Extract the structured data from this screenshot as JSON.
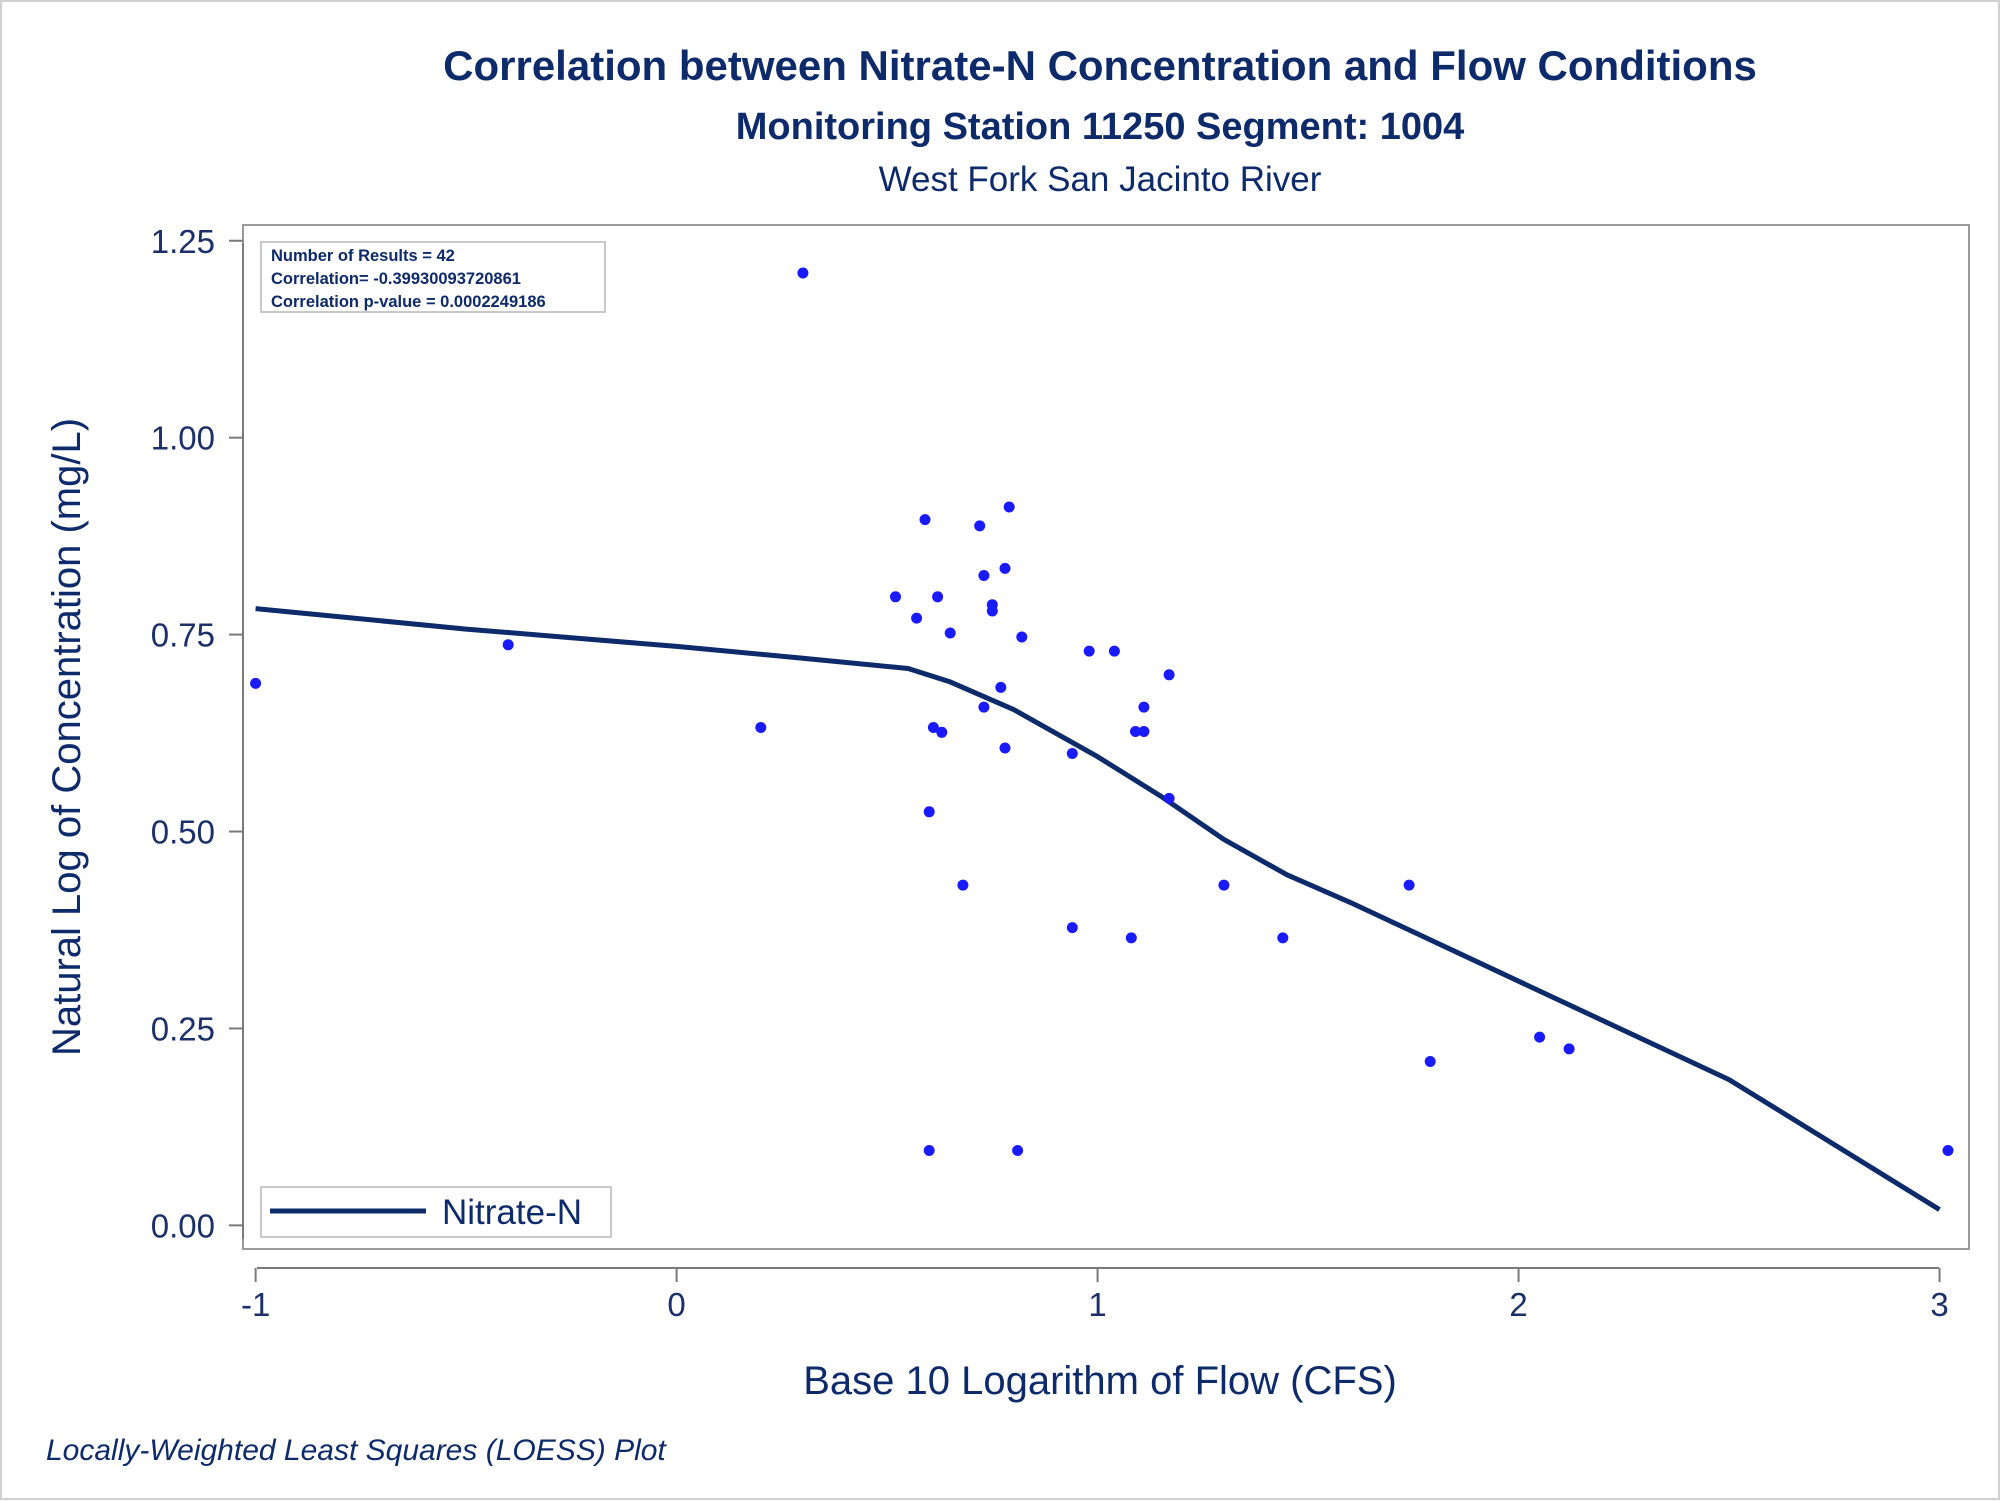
{
  "chart_data": {
    "type": "scatter",
    "title": "Correlation between Nitrate-N Concentration and Flow Conditions",
    "subtitle": "Monitoring Station 11250 Segment: 1004",
    "subtitle2": "West Fork San Jacinto River",
    "xlabel": "Base 10 Logarithm of Flow (CFS)",
    "ylabel": "Natural Log of Concentration (mg/L)",
    "footnote": "Locally-Weighted Least Squares (LOESS) Plot",
    "xlim": [
      -1.03,
      3.07
    ],
    "ylim": [
      -0.03,
      1.27
    ],
    "x_ticks": [
      -1,
      0,
      1,
      2,
      3
    ],
    "x_tick_labels": [
      "-1",
      "0",
      "1",
      "2",
      "3"
    ],
    "y_ticks": [
      0,
      0.25,
      0.5,
      0.75,
      1.0,
      1.25
    ],
    "y_tick_labels": [
      "0.00",
      "0.25",
      "0.50",
      "0.75",
      "1.00",
      "1.25"
    ],
    "grid": false,
    "stats": [
      "Number of Results = 42",
      "Correlation= -0.39930093720861",
      "Correlation p-value = 0.0002249186"
    ],
    "legend": {
      "position": "bottom-left",
      "entries": [
        "Nitrate-N"
      ]
    },
    "points_color": "#1a1aff",
    "line_color": "#0d2a6b",
    "points": [
      [
        -1.0,
        0.688
      ],
      [
        -0.4,
        0.737
      ],
      [
        0.2,
        0.632
      ],
      [
        0.3,
        1.209
      ],
      [
        0.52,
        0.798
      ],
      [
        0.57,
        0.771
      ],
      [
        0.59,
        0.896
      ],
      [
        0.6,
        0.525
      ],
      [
        0.6,
        0.095
      ],
      [
        0.61,
        0.632
      ],
      [
        0.62,
        0.798
      ],
      [
        0.63,
        0.626
      ],
      [
        0.65,
        0.752
      ],
      [
        0.68,
        0.432
      ],
      [
        0.72,
        0.888
      ],
      [
        0.73,
        0.825
      ],
      [
        0.73,
        0.658
      ],
      [
        0.75,
        0.788
      ],
      [
        0.75,
        0.78
      ],
      [
        0.77,
        0.683
      ],
      [
        0.78,
        0.834
      ],
      [
        0.78,
        0.606
      ],
      [
        0.79,
        0.912
      ],
      [
        0.81,
        0.095
      ],
      [
        0.82,
        0.747
      ],
      [
        0.94,
        0.599
      ],
      [
        0.94,
        0.378
      ],
      [
        0.98,
        0.729
      ],
      [
        1.04,
        0.729
      ],
      [
        1.08,
        0.365
      ],
      [
        1.09,
        0.627
      ],
      [
        1.11,
        0.658
      ],
      [
        1.11,
        0.627
      ],
      [
        1.17,
        0.699
      ],
      [
        1.17,
        0.542
      ],
      [
        1.3,
        0.432
      ],
      [
        1.44,
        0.365
      ],
      [
        1.74,
        0.432
      ],
      [
        1.79,
        0.208
      ],
      [
        2.05,
        0.239
      ],
      [
        2.12,
        0.224
      ],
      [
        3.02,
        0.095
      ]
    ],
    "series": [
      {
        "name": "Nitrate-N",
        "type": "line",
        "points": [
          [
            -1.0,
            0.783
          ],
          [
            -0.5,
            0.757
          ],
          [
            0.0,
            0.735
          ],
          [
            0.3,
            0.72
          ],
          [
            0.55,
            0.707
          ],
          [
            0.65,
            0.69
          ],
          [
            0.8,
            0.655
          ],
          [
            1.0,
            0.595
          ],
          [
            1.15,
            0.545
          ],
          [
            1.3,
            0.49
          ],
          [
            1.45,
            0.445
          ],
          [
            1.6,
            0.41
          ],
          [
            2.0,
            0.31
          ],
          [
            2.5,
            0.185
          ],
          [
            3.0,
            0.02
          ]
        ]
      }
    ]
  }
}
